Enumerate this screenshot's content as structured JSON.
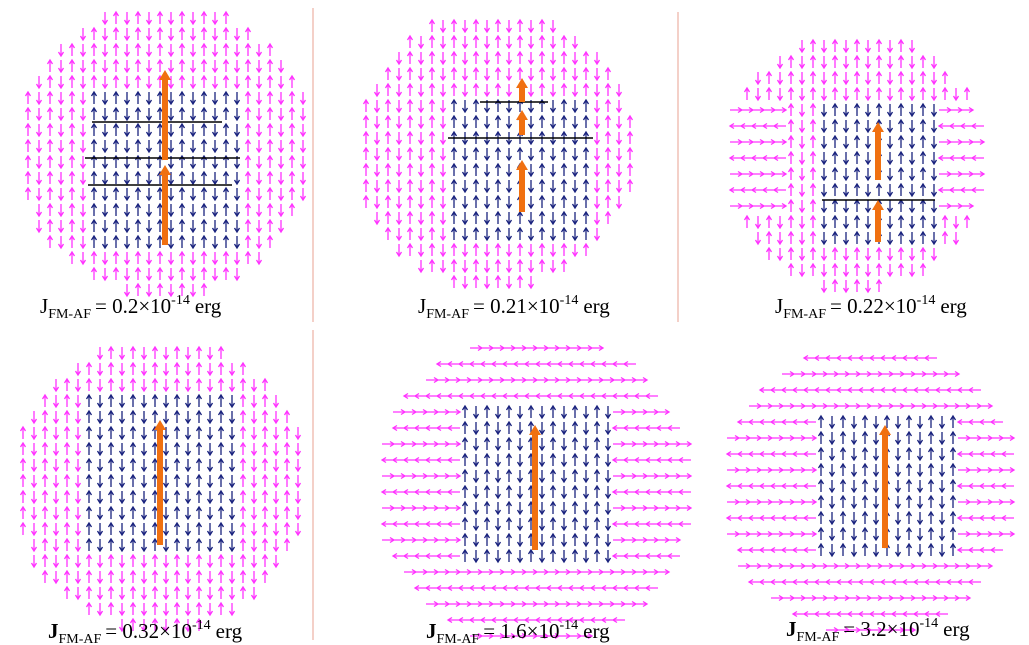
{
  "panels": [
    {
      "symbol": "J",
      "subscript": "FM-AF",
      "text": "= 0.2×10",
      "exponent": "-14",
      "unit": "erg"
    },
    {
      "symbol": "J",
      "subscript": "FM-AF",
      "text": "= 0.21×10",
      "exponent": "-14",
      "unit": "erg"
    },
    {
      "symbol": "J",
      "subscript": "FM-AF",
      "text": "= 0.22×10",
      "exponent": "-14",
      "unit": "erg"
    },
    {
      "symbol": "J",
      "subscript": "FM-AF",
      "text": "= 0.32×10",
      "exponent": "-14",
      "unit": "erg"
    },
    {
      "symbol": "J",
      "subscript": "FM-AF",
      "text": "= 1.6×10",
      "exponent": "-14",
      "unit": "erg"
    },
    {
      "symbol": "J",
      "subscript": "FM-AF",
      "text": "= 3.2×10",
      "exponent": "-14",
      "unit": "erg"
    }
  ]
}
